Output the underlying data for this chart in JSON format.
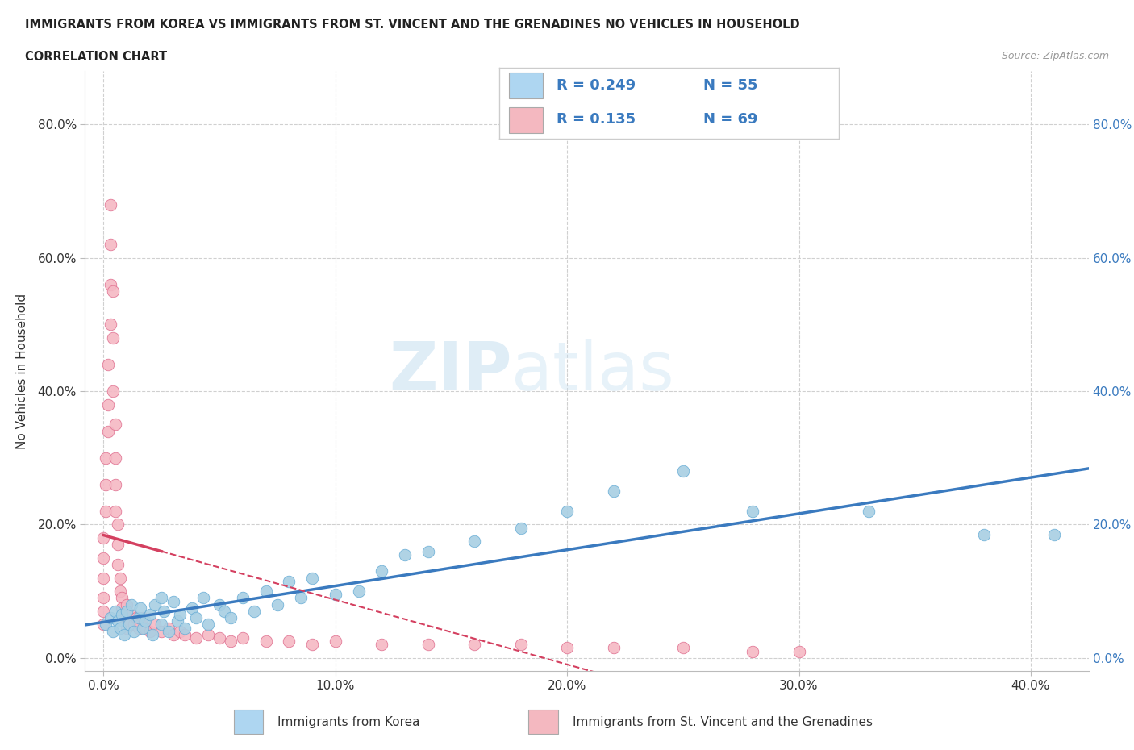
{
  "title_line1": "IMMIGRANTS FROM KOREA VS IMMIGRANTS FROM ST. VINCENT AND THE GRENADINES NO VEHICLES IN HOUSEHOLD",
  "title_line2": "CORRELATION CHART",
  "source_text": "Source: ZipAtlas.com",
  "xlabel_ticks": [
    "0.0%",
    "10.0%",
    "20.0%",
    "30.0%",
    "40.0%"
  ],
  "xlabel_tick_vals": [
    0.0,
    0.1,
    0.2,
    0.3,
    0.4
  ],
  "ylabel_ticks": [
    "0.0%",
    "20.0%",
    "40.0%",
    "60.0%",
    "80.0%"
  ],
  "ylabel_tick_vals": [
    0.0,
    0.2,
    0.4,
    0.6,
    0.8
  ],
  "xlim": [
    -0.008,
    0.425
  ],
  "ylim": [
    -0.02,
    0.88
  ],
  "korea_color": "#a8cfe3",
  "stvincent_color": "#f5b8c4",
  "korea_edge_color": "#6aaed6",
  "stvincent_edge_color": "#e07090",
  "korea_line_color": "#3a7abf",
  "stvincent_line_color": "#d44060",
  "legend_korea_color": "#aed6f1",
  "legend_stvincent_color": "#f4b8c0",
  "R_korea": 0.249,
  "N_korea": 55,
  "R_stvincent": 0.135,
  "N_stvincent": 69,
  "ylabel": "No Vehicles in Household",
  "watermark_part1": "ZIP",
  "watermark_part2": "atlas",
  "korea_x": [
    0.001,
    0.003,
    0.004,
    0.005,
    0.006,
    0.007,
    0.008,
    0.009,
    0.01,
    0.011,
    0.012,
    0.013,
    0.015,
    0.016,
    0.017,
    0.018,
    0.02,
    0.021,
    0.022,
    0.025,
    0.025,
    0.026,
    0.028,
    0.03,
    0.032,
    0.033,
    0.035,
    0.038,
    0.04,
    0.043,
    0.045,
    0.05,
    0.052,
    0.055,
    0.06,
    0.065,
    0.07,
    0.075,
    0.08,
    0.085,
    0.09,
    0.1,
    0.11,
    0.12,
    0.13,
    0.14,
    0.16,
    0.18,
    0.2,
    0.22,
    0.25,
    0.28,
    0.33,
    0.38,
    0.41
  ],
  "korea_y": [
    0.05,
    0.06,
    0.04,
    0.07,
    0.055,
    0.045,
    0.065,
    0.035,
    0.07,
    0.05,
    0.08,
    0.04,
    0.06,
    0.075,
    0.045,
    0.055,
    0.065,
    0.035,
    0.08,
    0.05,
    0.09,
    0.07,
    0.04,
    0.085,
    0.055,
    0.065,
    0.045,
    0.075,
    0.06,
    0.09,
    0.05,
    0.08,
    0.07,
    0.06,
    0.09,
    0.07,
    0.1,
    0.08,
    0.115,
    0.09,
    0.12,
    0.095,
    0.1,
    0.13,
    0.155,
    0.16,
    0.175,
    0.195,
    0.22,
    0.25,
    0.28,
    0.22,
    0.22,
    0.185,
    0.185
  ],
  "sv_x": [
    0.0,
    0.0,
    0.0,
    0.0,
    0.0,
    0.0,
    0.001,
    0.001,
    0.001,
    0.002,
    0.002,
    0.002,
    0.003,
    0.003,
    0.003,
    0.003,
    0.004,
    0.004,
    0.004,
    0.005,
    0.005,
    0.005,
    0.005,
    0.006,
    0.006,
    0.006,
    0.007,
    0.007,
    0.008,
    0.008,
    0.009,
    0.009,
    0.01,
    0.01,
    0.01,
    0.011,
    0.012,
    0.013,
    0.014,
    0.015,
    0.015,
    0.016,
    0.017,
    0.018,
    0.02,
    0.022,
    0.025,
    0.028,
    0.03,
    0.033,
    0.035,
    0.04,
    0.045,
    0.05,
    0.055,
    0.06,
    0.07,
    0.08,
    0.09,
    0.1,
    0.12,
    0.14,
    0.16,
    0.18,
    0.2,
    0.22,
    0.25,
    0.28,
    0.3
  ],
  "sv_y": [
    0.05,
    0.07,
    0.09,
    0.12,
    0.15,
    0.18,
    0.22,
    0.26,
    0.3,
    0.34,
    0.38,
    0.44,
    0.5,
    0.56,
    0.62,
    0.68,
    0.55,
    0.48,
    0.4,
    0.35,
    0.3,
    0.26,
    0.22,
    0.2,
    0.17,
    0.14,
    0.12,
    0.1,
    0.09,
    0.075,
    0.065,
    0.055,
    0.08,
    0.06,
    0.045,
    0.055,
    0.065,
    0.05,
    0.06,
    0.045,
    0.055,
    0.05,
    0.06,
    0.045,
    0.04,
    0.05,
    0.04,
    0.045,
    0.035,
    0.04,
    0.035,
    0.03,
    0.035,
    0.03,
    0.025,
    0.03,
    0.025,
    0.025,
    0.02,
    0.025,
    0.02,
    0.02,
    0.02,
    0.02,
    0.015,
    0.015,
    0.015,
    0.01,
    0.01
  ]
}
